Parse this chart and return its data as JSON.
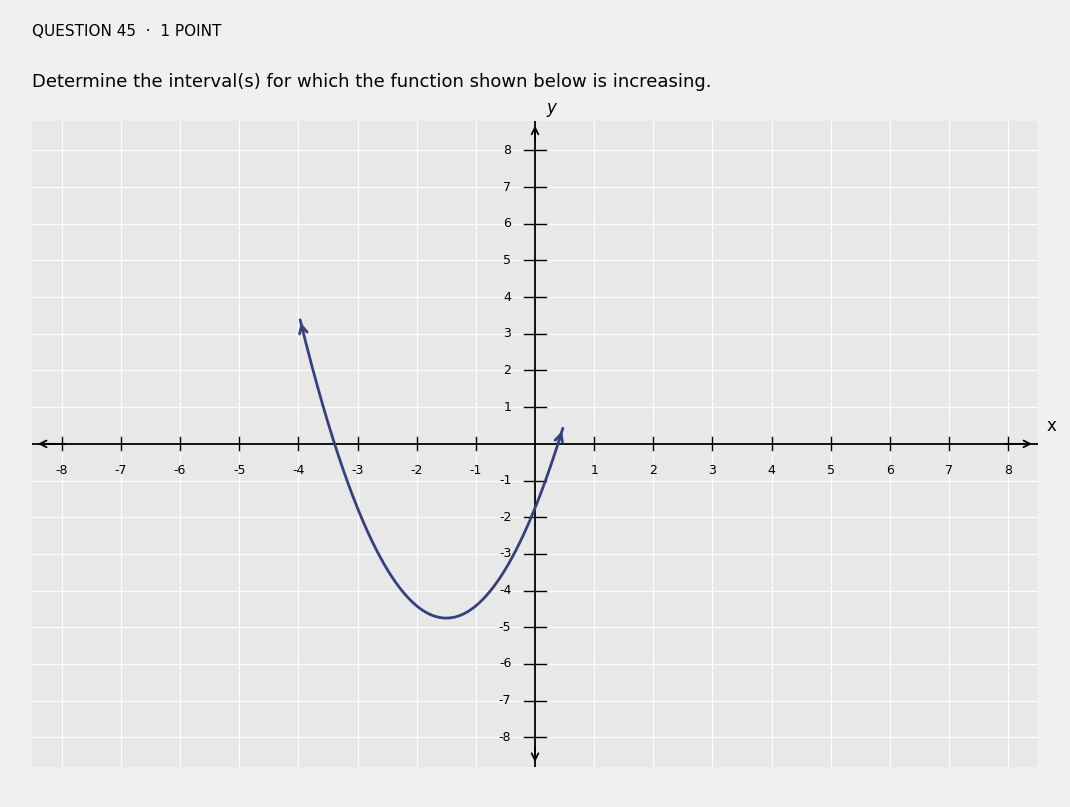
{
  "title_line1": "QUESTION 45  ·  1 POINT",
  "subtitle": "Determine the interval(s) for which the function shown below is increasing.",
  "xlabel": "x",
  "ylabel": "y",
  "xlim": [
    -8.5,
    8.5
  ],
  "ylim": [
    -8.8,
    8.8
  ],
  "x_ticks": [
    -8,
    -7,
    -6,
    -5,
    -4,
    -3,
    -2,
    -1,
    1,
    2,
    3,
    4,
    5,
    6,
    7,
    8
  ],
  "y_ticks": [
    -8,
    -7,
    -6,
    -5,
    -4,
    -3,
    -2,
    -1,
    1,
    2,
    3,
    4,
    5,
    6,
    7,
    8
  ],
  "curve_color": "#354080",
  "curve_linewidth": 2.0,
  "plot_bg_color": "#e8e8e8",
  "fig_bg_color": "#d8d8d8",
  "grid_color": "#ffffff",
  "vertex_x": -1.5,
  "vertex_y": -4.75,
  "a_coeff": 1.333,
  "x_curve_start": -3.97,
  "x_curve_end": 0.47
}
